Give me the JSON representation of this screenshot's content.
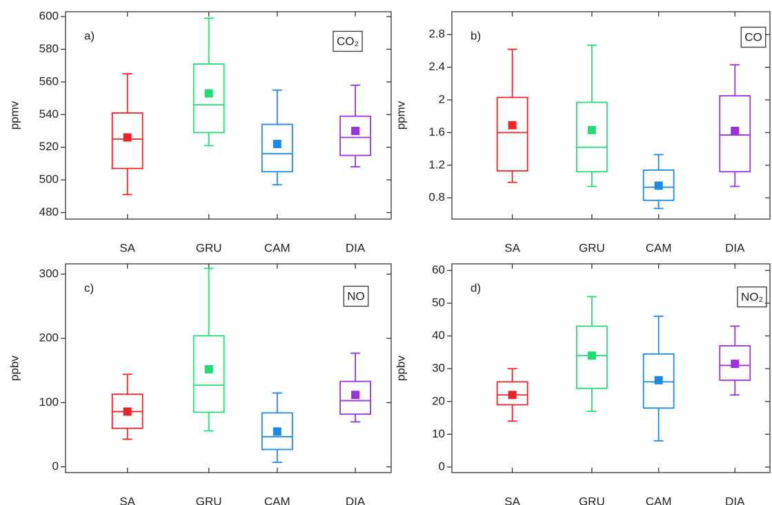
{
  "chart_data": [
    {
      "type": "box",
      "label": "a)",
      "annotation": "CO₂",
      "ylabel": "ppmv",
      "categories": [
        "SA",
        "GRU",
        "CAM",
        "DIA"
      ],
      "colors": [
        "#e8262a",
        "#22dd77",
        "#1e88e5",
        "#9933dd"
      ],
      "min": [
        491,
        521,
        497,
        508
      ],
      "q1": [
        507,
        529,
        505,
        515
      ],
      "median": [
        525,
        546,
        516,
        526
      ],
      "q3": [
        541,
        571,
        534,
        539
      ],
      "max": [
        565,
        599,
        555,
        558
      ],
      "mean": [
        526,
        553,
        522,
        530
      ],
      "ylim": [
        476,
        603
      ],
      "yticks": [
        480,
        500,
        520,
        540,
        560,
        580,
        600
      ]
    },
    {
      "type": "box",
      "label": "b)",
      "annotation": "CO",
      "ylabel": "ppmv",
      "categories": [
        "SA",
        "GRU",
        "CAM",
        "DIA"
      ],
      "colors": [
        "#e8262a",
        "#22dd77",
        "#1e88e5",
        "#9933dd"
      ],
      "min": [
        0.99,
        0.94,
        0.67,
        0.94
      ],
      "q1": [
        1.13,
        1.12,
        0.77,
        1.12
      ],
      "median": [
        1.6,
        1.42,
        0.93,
        1.57
      ],
      "q3": [
        2.03,
        1.97,
        1.14,
        2.05
      ],
      "max": [
        2.62,
        2.67,
        1.33,
        2.43
      ],
      "mean": [
        1.69,
        1.63,
        0.95,
        1.62
      ],
      "ylim": [
        0.54,
        3.08
      ],
      "yticks": [
        0.8,
        1.2,
        1.6,
        2.0,
        2.4,
        2.8
      ]
    },
    {
      "type": "box",
      "label": "c)",
      "annotation": "NO",
      "ylabel": "ppbv",
      "categories": [
        "SA",
        "GRU",
        "CAM",
        "DIA"
      ],
      "colors": [
        "#e8262a",
        "#22dd77",
        "#1e88e5",
        "#9933dd"
      ],
      "min": [
        43,
        56,
        7,
        70
      ],
      "q1": [
        60,
        85,
        27,
        82
      ],
      "median": [
        86,
        127,
        47,
        103
      ],
      "q3": [
        113,
        204,
        84,
        133
      ],
      "max": [
        144,
        309,
        115,
        177
      ],
      "mean": [
        86,
        152,
        55,
        112
      ],
      "ylim": [
        -9,
        316
      ],
      "yticks": [
        0,
        100,
        200,
        300
      ]
    },
    {
      "type": "box",
      "label": "d)",
      "annotation": "NO₂",
      "ylabel": "ppbv",
      "categories": [
        "SA",
        "GRU",
        "CAM",
        "DIA"
      ],
      "colors": [
        "#e8262a",
        "#22dd77",
        "#1e88e5",
        "#9933dd"
      ],
      "min": [
        14,
        17,
        8,
        22
      ],
      "q1": [
        19,
        24,
        18,
        26.5
      ],
      "median": [
        22,
        34,
        26,
        31
      ],
      "q3": [
        26,
        43,
        34.5,
        37
      ],
      "max": [
        30,
        52,
        46,
        43
      ],
      "mean": [
        22,
        34,
        26.5,
        31.5
      ],
      "ylim": [
        -1.7,
        62
      ],
      "yticks": [
        0,
        10,
        20,
        30,
        40,
        50,
        60
      ]
    }
  ]
}
